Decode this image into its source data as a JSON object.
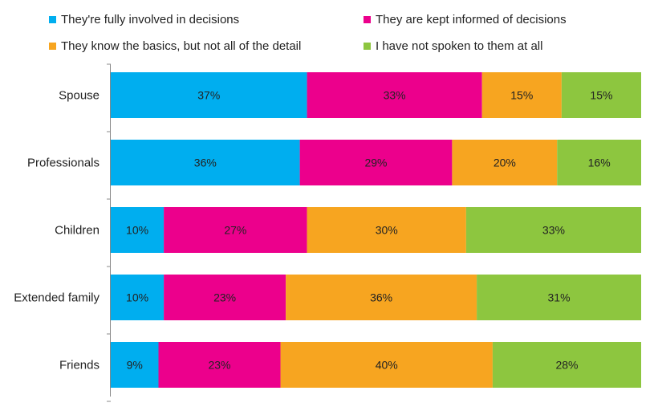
{
  "chart_data": {
    "type": "bar",
    "orientation": "horizontal",
    "stacked": true,
    "percent": true,
    "categories": [
      "Spouse",
      "Professionals",
      "Children",
      "Extended family",
      "Friends"
    ],
    "series": [
      {
        "name": "They're fully involved in decisions",
        "color": "#00aeef",
        "values": [
          37,
          36,
          10,
          10,
          9
        ]
      },
      {
        "name": "They are kept informed of decisions",
        "color": "#ec008c",
        "values": [
          33,
          29,
          27,
          23,
          23
        ]
      },
      {
        "name": "They know the basics, but not all of the detail",
        "color": "#f7a520",
        "values": [
          15,
          20,
          30,
          36,
          40
        ]
      },
      {
        "name": "I have not spoken to them at all",
        "color": "#8dc63f",
        "values": [
          15,
          16,
          33,
          31,
          28
        ]
      }
    ],
    "data_labels": "percent",
    "legend_position": "top",
    "grid": false
  }
}
